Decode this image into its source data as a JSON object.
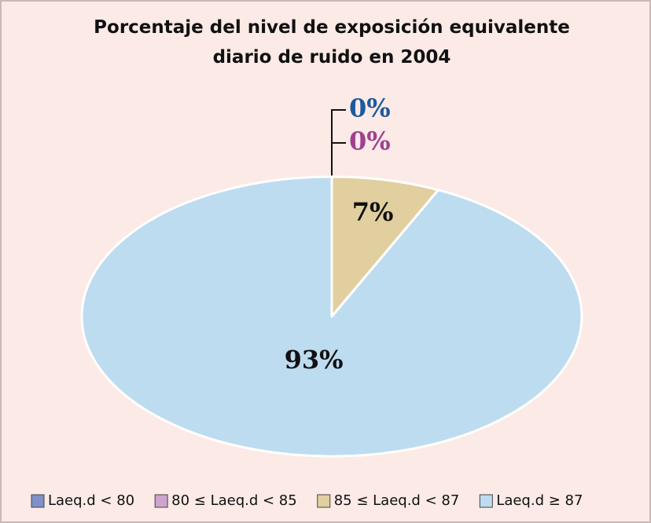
{
  "chart_data": {
    "type": "pie",
    "title": [
      "Porcentaje del nivel de exposición equivalente",
      "diario de ruido en 2004"
    ],
    "categories": [
      "Laeq.d < 80",
      "80 ≤ Laeq.d < 85",
      "85 ≤ Laeq.d < 87",
      "Laeq.d ≥ 87"
    ],
    "values": [
      0,
      0,
      7,
      93
    ],
    "value_labels": [
      "0%",
      "0%",
      "7%",
      "93%"
    ],
    "colors": [
      "#8090c8",
      "#cca4cc",
      "#e2cf9f",
      "#bddcf0"
    ],
    "label_colors": [
      "#1f5a9c",
      "#a0408f",
      "#111111",
      "#111111"
    ],
    "legend": "bottom"
  }
}
